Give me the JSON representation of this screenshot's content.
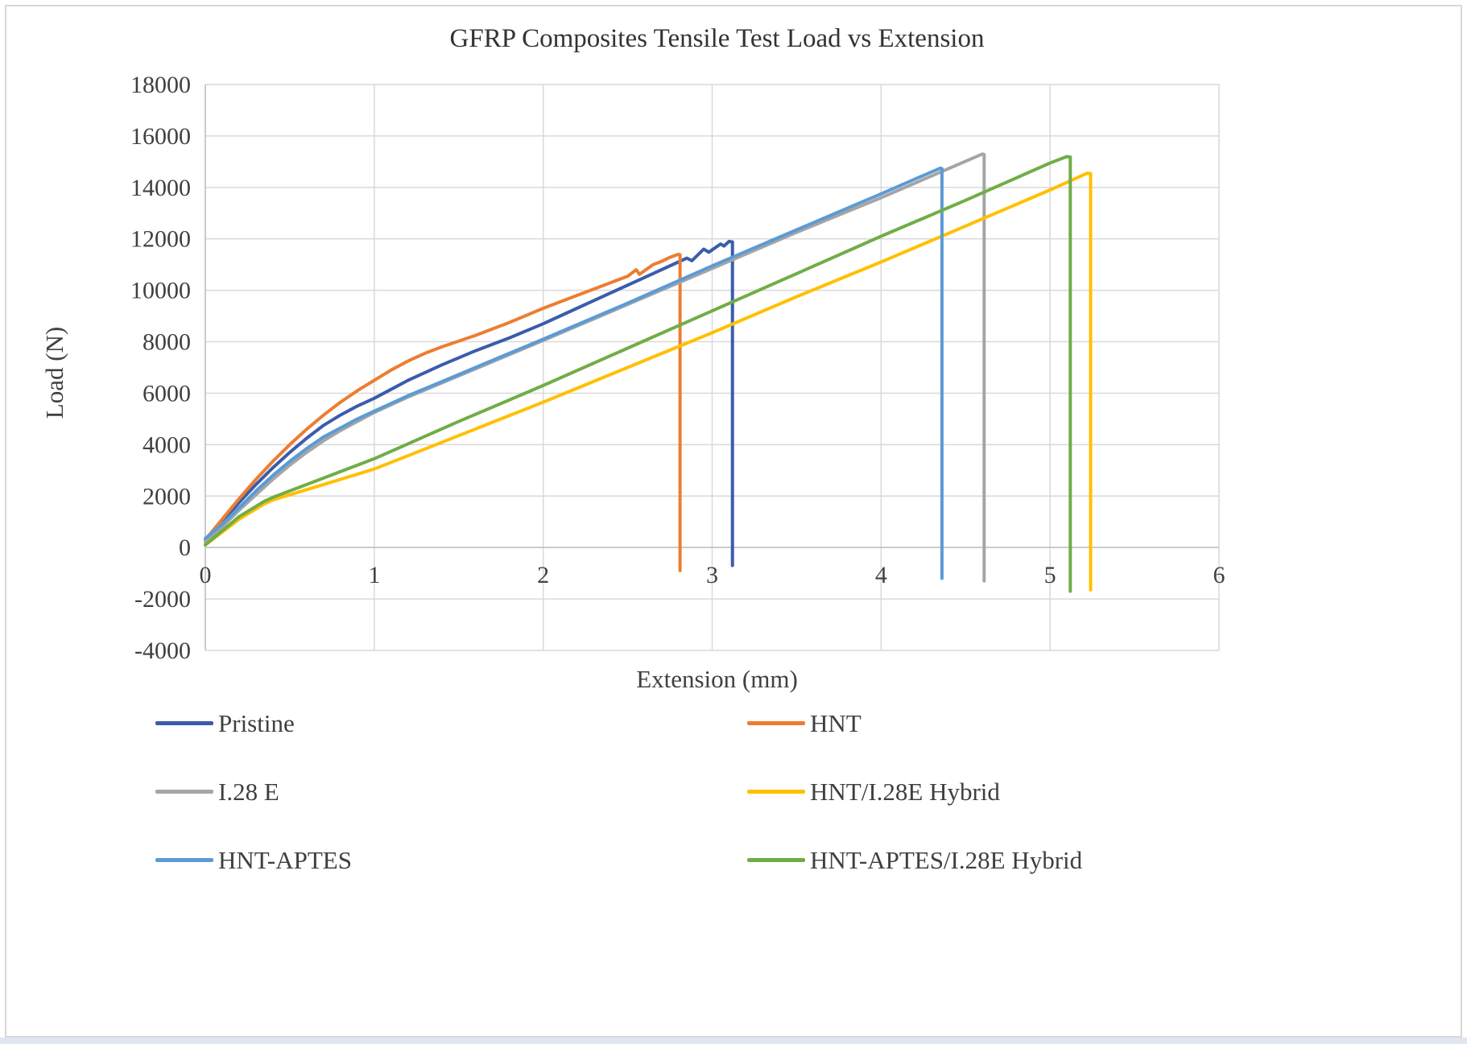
{
  "title": "GFRP Composites Tensile Test Load vs Extension",
  "chart_data": {
    "type": "line",
    "title": "GFRP Composites Tensile Test Load vs Extension",
    "xlabel": "Extension (mm)",
    "ylabel": "Load (N)",
    "xlim": [
      0,
      6
    ],
    "ylim": [
      -4000,
      18000
    ],
    "x_ticks": [
      0,
      1,
      2,
      3,
      4,
      5,
      6
    ],
    "y_ticks": [
      -4000,
      -2000,
      0,
      2000,
      4000,
      6000,
      8000,
      10000,
      12000,
      14000,
      16000,
      18000
    ],
    "grid": true,
    "grid_color": "#d9d9d9",
    "axis_color": "#bfbfbf",
    "legend_position": "bottom",
    "series": [
      {
        "name": "Pristine",
        "color": "#3b5cab",
        "points": [
          [
            0,
            300
          ],
          [
            0.1,
            1000
          ],
          [
            0.2,
            1750
          ],
          [
            0.3,
            2450
          ],
          [
            0.4,
            3100
          ],
          [
            0.5,
            3700
          ],
          [
            0.6,
            4250
          ],
          [
            0.7,
            4750
          ],
          [
            0.8,
            5150
          ],
          [
            0.9,
            5500
          ],
          [
            1,
            5800
          ],
          [
            1.1,
            6150
          ],
          [
            1.2,
            6500
          ],
          [
            1.4,
            7100
          ],
          [
            1.6,
            7650
          ],
          [
            1.8,
            8150
          ],
          [
            2,
            8700
          ],
          [
            2.2,
            9300
          ],
          [
            2.4,
            9900
          ],
          [
            2.6,
            10500
          ],
          [
            2.8,
            11100
          ],
          [
            2.85,
            11250
          ],
          [
            2.88,
            11150
          ],
          [
            2.95,
            11600
          ],
          [
            2.98,
            11480
          ],
          [
            3.05,
            11800
          ],
          [
            3.07,
            11720
          ],
          [
            3.1,
            11900
          ],
          [
            3.12,
            11880
          ],
          [
            3.12,
            -700
          ]
        ]
      },
      {
        "name": "HNT",
        "color": "#ed7d31",
        "points": [
          [
            0,
            300
          ],
          [
            0.1,
            1100
          ],
          [
            0.2,
            1900
          ],
          [
            0.3,
            2650
          ],
          [
            0.4,
            3350
          ],
          [
            0.5,
            4000
          ],
          [
            0.6,
            4600
          ],
          [
            0.7,
            5150
          ],
          [
            0.8,
            5650
          ],
          [
            0.9,
            6100
          ],
          [
            1,
            6500
          ],
          [
            1.1,
            6900
          ],
          [
            1.2,
            7250
          ],
          [
            1.3,
            7550
          ],
          [
            1.4,
            7800
          ],
          [
            1.6,
            8250
          ],
          [
            1.8,
            8750
          ],
          [
            2,
            9300
          ],
          [
            2.2,
            9800
          ],
          [
            2.4,
            10300
          ],
          [
            2.5,
            10550
          ],
          [
            2.55,
            10800
          ],
          [
            2.57,
            10620
          ],
          [
            2.65,
            11000
          ],
          [
            2.7,
            11120
          ],
          [
            2.75,
            11280
          ],
          [
            2.8,
            11400
          ],
          [
            2.81,
            11380
          ],
          [
            2.81,
            -900
          ]
        ]
      },
      {
        "name": "I.28 E",
        "color": "#a5a5a5",
        "points": [
          [
            0,
            200
          ],
          [
            0.1,
            800
          ],
          [
            0.2,
            1450
          ],
          [
            0.3,
            2050
          ],
          [
            0.4,
            2650
          ],
          [
            0.5,
            3200
          ],
          [
            0.6,
            3700
          ],
          [
            0.7,
            4150
          ],
          [
            0.8,
            4550
          ],
          [
            0.9,
            4900
          ],
          [
            1,
            5250
          ],
          [
            1.2,
            5850
          ],
          [
            1.4,
            6400
          ],
          [
            1.6,
            6950
          ],
          [
            1.8,
            7500
          ],
          [
            2,
            8050
          ],
          [
            2.5,
            9450
          ],
          [
            3,
            10850
          ],
          [
            3.5,
            12250
          ],
          [
            4,
            13600
          ],
          [
            4.3,
            14450
          ],
          [
            4.6,
            15300
          ],
          [
            4.61,
            15280
          ],
          [
            4.61,
            -1300
          ]
        ]
      },
      {
        "name": "HNT/I.28E Hybrid",
        "color": "#ffc000",
        "points": [
          [
            0,
            100
          ],
          [
            0.1,
            600
          ],
          [
            0.2,
            1100
          ],
          [
            0.3,
            1500
          ],
          [
            0.35,
            1700
          ],
          [
            0.4,
            1850
          ],
          [
            0.5,
            2050
          ],
          [
            0.6,
            2250
          ],
          [
            0.7,
            2450
          ],
          [
            0.8,
            2650
          ],
          [
            0.9,
            2850
          ],
          [
            1,
            3050
          ],
          [
            1.5,
            4350
          ],
          [
            2,
            5650
          ],
          [
            2.5,
            7000
          ],
          [
            3,
            8350
          ],
          [
            3.5,
            9750
          ],
          [
            4,
            11100
          ],
          [
            4.5,
            12500
          ],
          [
            5,
            13900
          ],
          [
            5.22,
            14550
          ],
          [
            5.24,
            14540
          ],
          [
            5.24,
            -1650
          ]
        ]
      },
      {
        "name": "HNT-APTES",
        "color": "#5b9bd5",
        "points": [
          [
            0,
            350
          ],
          [
            0.1,
            900
          ],
          [
            0.2,
            1550
          ],
          [
            0.3,
            2200
          ],
          [
            0.4,
            2800
          ],
          [
            0.5,
            3350
          ],
          [
            0.6,
            3850
          ],
          [
            0.7,
            4300
          ],
          [
            0.8,
            4650
          ],
          [
            0.9,
            5000
          ],
          [
            1,
            5300
          ],
          [
            1.2,
            5900
          ],
          [
            1.4,
            6450
          ],
          [
            1.6,
            7000
          ],
          [
            1.8,
            7550
          ],
          [
            2,
            8100
          ],
          [
            2.5,
            9500
          ],
          [
            3,
            10950
          ],
          [
            3.5,
            12350
          ],
          [
            4,
            13750
          ],
          [
            4.35,
            14750
          ],
          [
            4.36,
            14730
          ],
          [
            4.36,
            -1200
          ]
        ]
      },
      {
        "name": "HNT-APTES/I.28E Hybrid",
        "color": "#70ad47",
        "points": [
          [
            0,
            100
          ],
          [
            0.1,
            650
          ],
          [
            0.2,
            1200
          ],
          [
            0.3,
            1600
          ],
          [
            0.35,
            1800
          ],
          [
            0.4,
            1950
          ],
          [
            0.5,
            2200
          ],
          [
            0.6,
            2450
          ],
          [
            0.7,
            2700
          ],
          [
            0.8,
            2950
          ],
          [
            0.9,
            3200
          ],
          [
            1,
            3450
          ],
          [
            1.5,
            4900
          ],
          [
            2,
            6300
          ],
          [
            2.5,
            7750
          ],
          [
            3,
            9200
          ],
          [
            3.5,
            10650
          ],
          [
            4,
            12100
          ],
          [
            4.5,
            13500
          ],
          [
            5,
            14950
          ],
          [
            5.1,
            15200
          ],
          [
            5.12,
            15180
          ],
          [
            5.12,
            -1700
          ]
        ]
      }
    ]
  }
}
